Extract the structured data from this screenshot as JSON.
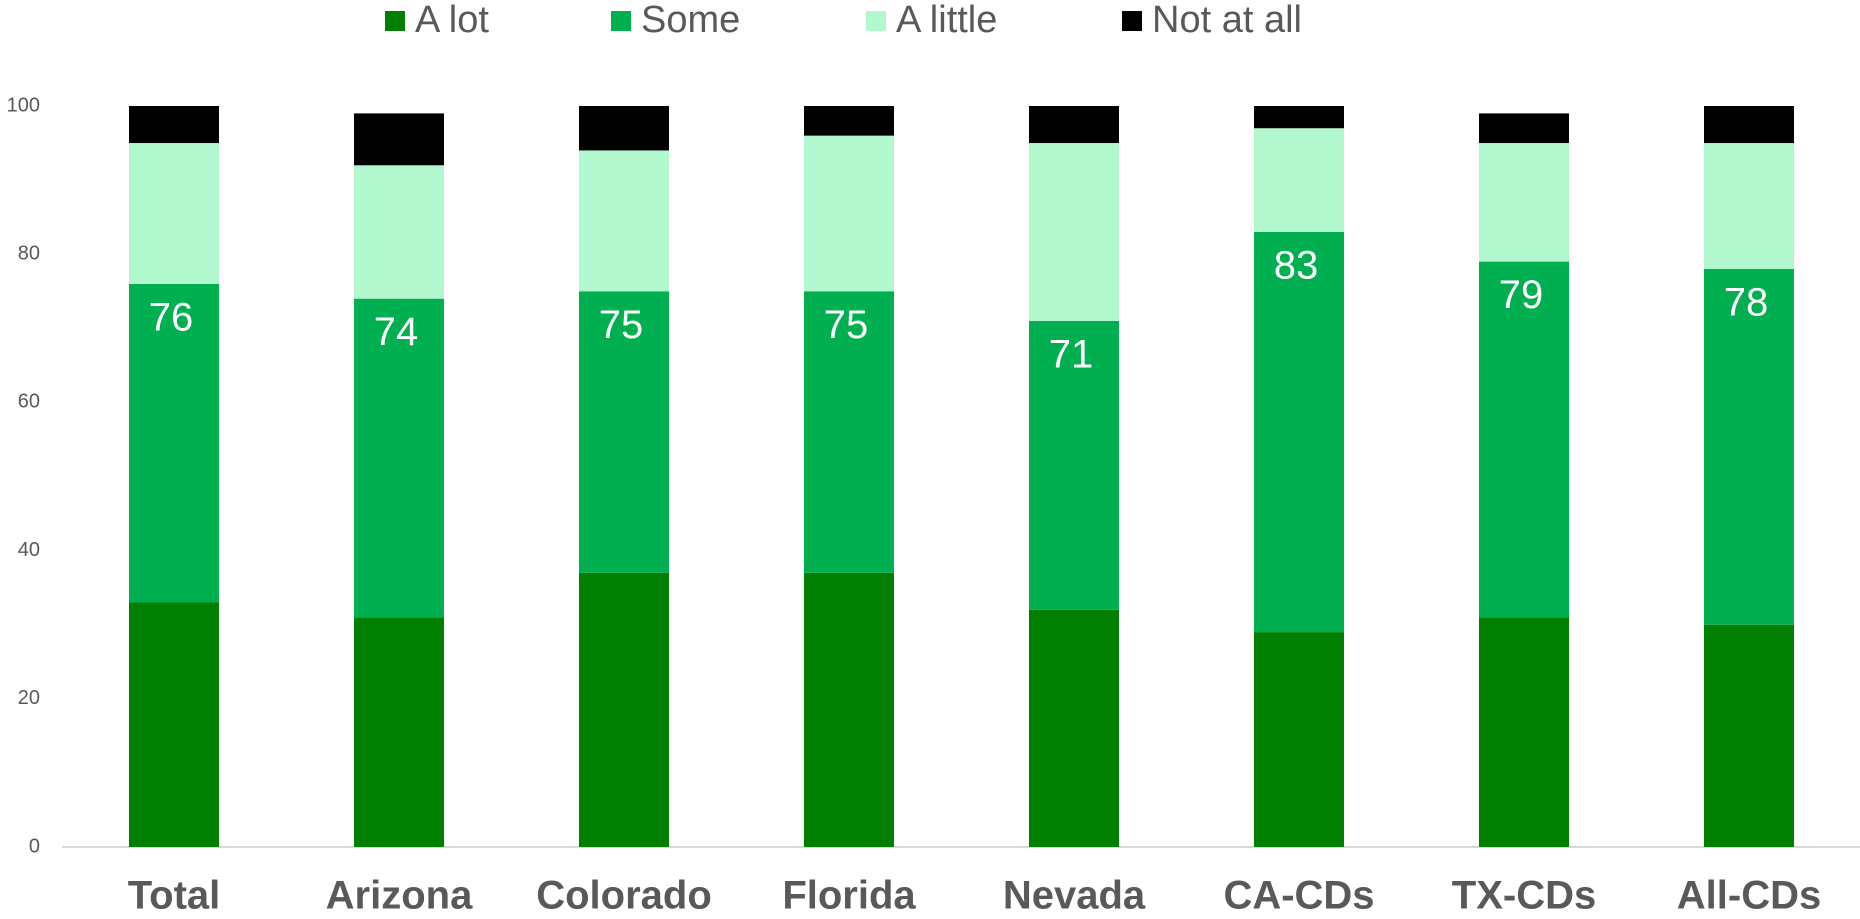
{
  "chart_data": {
    "type": "stacked_bar",
    "categories": [
      "Total",
      "Arizona",
      "Colorado",
      "Florida",
      "Nevada",
      "CA-CDs",
      "TX-CDs",
      "All-CDs"
    ],
    "series": [
      {
        "name": "A lot",
        "color": "#007f00",
        "values": [
          33,
          31,
          37,
          37,
          32,
          29,
          31,
          30
        ]
      },
      {
        "name": "Some",
        "color": "#00b050",
        "values": [
          43,
          43,
          38,
          38,
          39,
          54,
          48,
          48
        ]
      },
      {
        "name": "A little",
        "color": "#b3f7cf",
        "values": [
          19,
          18,
          19,
          21,
          24,
          14,
          16,
          17
        ]
      },
      {
        "name": "Not at all",
        "color": "#000000",
        "values": [
          5,
          7,
          6,
          4,
          5,
          3,
          4,
          5
        ]
      }
    ],
    "net_values": [
      76,
      74,
      75,
      75,
      71,
      83,
      79,
      78
    ],
    "ylim": [
      0,
      100
    ],
    "yticks": [
      0,
      20,
      40,
      60,
      80,
      100
    ],
    "grid": false,
    "legend": "top"
  }
}
